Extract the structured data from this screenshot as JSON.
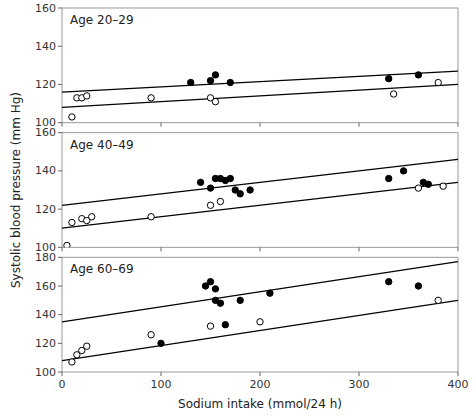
{
  "chart_data": [
    {
      "type": "scatter",
      "title": "Age 20–29",
      "xlim": [
        0,
        400
      ],
      "xticks": [
        0,
        100,
        200,
        300,
        400
      ],
      "ylim": [
        100,
        160
      ],
      "yticks": [
        100,
        120,
        140,
        160
      ],
      "grid": false,
      "tick_labels": "y",
      "series": [
        {
          "type": "line",
          "color": "#000000",
          "x": [
            0,
            400
          ],
          "values": [
            116,
            127
          ]
        },
        {
          "type": "line",
          "color": "#000000",
          "x": [
            0,
            400
          ],
          "values": [
            108,
            120
          ]
        },
        {
          "type": "scatter",
          "marker": "circle",
          "color": "#000000",
          "x": [
            130,
            150,
            155,
            170,
            330,
            360
          ],
          "values": [
            121,
            122,
            125,
            121,
            123,
            125
          ]
        },
        {
          "type": "scatter",
          "marker": "circle",
          "color": "#ffffff",
          "x": [
            10,
            15,
            20,
            25,
            90,
            150,
            155,
            335,
            380
          ],
          "values": [
            103,
            113,
            113,
            114,
            113,
            113,
            111,
            115,
            121
          ]
        }
      ]
    },
    {
      "type": "scatter",
      "title": "Age 40–49",
      "ylabel": "Systolic blood pressure (mm Hg)",
      "xlim": [
        0,
        400
      ],
      "xticks": [
        0,
        100,
        200,
        300,
        400
      ],
      "ylim": [
        100,
        160
      ],
      "yticks": [
        100,
        120,
        140,
        160
      ],
      "grid": false,
      "tick_labels": "y",
      "series": [
        {
          "type": "line",
          "color": "#000000",
          "x": [
            0,
            400
          ],
          "values": [
            122,
            146
          ]
        },
        {
          "type": "line",
          "color": "#000000",
          "x": [
            0,
            400
          ],
          "values": [
            110,
            134
          ]
        },
        {
          "type": "scatter",
          "marker": "circle",
          "color": "#000000",
          "x": [
            140,
            150,
            155,
            160,
            165,
            170,
            175,
            180,
            190,
            330,
            345,
            365,
            370
          ],
          "values": [
            134,
            131,
            136,
            136,
            135,
            136,
            130,
            128,
            130,
            136,
            140,
            134,
            133
          ]
        },
        {
          "type": "scatter",
          "marker": "circle",
          "color": "#ffffff",
          "x": [
            5,
            10,
            20,
            25,
            30,
            90,
            150,
            160,
            360,
            385
          ],
          "values": [
            101,
            113,
            115,
            114,
            116,
            116,
            122,
            124,
            131,
            132
          ]
        }
      ]
    },
    {
      "type": "scatter",
      "title": "Age 60–69",
      "xlabel": "Sodium intake (mmol/24 h)",
      "xlim": [
        0,
        400
      ],
      "xticks": [
        0,
        100,
        200,
        300,
        400
      ],
      "ylim": [
        100,
        180
      ],
      "yticks": [
        100,
        120,
        140,
        160,
        180
      ],
      "grid": false,
      "series": [
        {
          "type": "line",
          "color": "#000000",
          "x": [
            0,
            400
          ],
          "values": [
            135,
            177
          ]
        },
        {
          "type": "line",
          "color": "#000000",
          "x": [
            0,
            400
          ],
          "values": [
            108,
            150
          ]
        },
        {
          "type": "scatter",
          "marker": "circle",
          "color": "#000000",
          "x": [
            100,
            145,
            150,
            155,
            155,
            160,
            165,
            180,
            210,
            330,
            360
          ],
          "values": [
            120,
            160,
            163,
            150,
            158,
            148,
            133,
            150,
            155,
            163,
            160
          ]
        },
        {
          "type": "scatter",
          "marker": "circle",
          "color": "#ffffff",
          "x": [
            10,
            15,
            20,
            25,
            90,
            150,
            200,
            380
          ],
          "values": [
            107,
            112,
            115,
            118,
            126,
            132,
            135,
            150
          ]
        }
      ]
    }
  ]
}
